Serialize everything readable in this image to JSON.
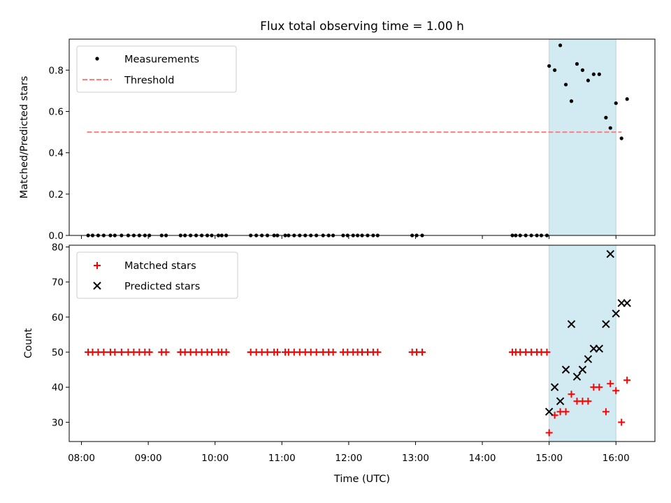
{
  "chart_data": [
    {
      "panel": "top",
      "type": "scatter",
      "title": "Flux total observing time = 1.00 h",
      "xlabel": "",
      "ylabel": "Matched/Predicted stars",
      "xlim": [
        "07:49",
        "16:35"
      ],
      "ylim": [
        0,
        0.95
      ],
      "yticks": [
        0.0,
        0.2,
        0.4,
        0.6,
        0.8
      ],
      "ytick_labels": [
        "0.0",
        "0.2",
        "0.4",
        "0.6",
        "0.8"
      ],
      "grid": false,
      "legend": "top-left",
      "shaded_span": {
        "x0": "15:00",
        "x1": "16:00",
        "color": "#add8e6"
      },
      "threshold": {
        "name": "Threshold",
        "value": 0.5,
        "x0": "08:05",
        "x1": "16:05",
        "color": "#ff7f7f"
      },
      "series": [
        {
          "name": "Measurements",
          "color": "#000000",
          "x": [
            "08:06",
            "08:10",
            "08:15",
            "08:20",
            "08:26",
            "08:30",
            "08:36",
            "08:42",
            "08:47",
            "08:52",
            "08:57",
            "09:01",
            "09:12",
            "09:16",
            "09:29",
            "09:33",
            "09:38",
            "09:43",
            "09:48",
            "09:53",
            "09:57",
            "10:03",
            "10:06",
            "10:10",
            "10:32",
            "10:37",
            "10:42",
            "10:47",
            "10:53",
            "10:56",
            "11:03",
            "11:06",
            "11:11",
            "11:16",
            "11:21",
            "11:26",
            "11:31",
            "11:37",
            "11:42",
            "11:46",
            "11:55",
            "11:59",
            "12:04",
            "12:08",
            "12:12",
            "12:17",
            "12:22",
            "12:26",
            "12:57",
            "13:01",
            "13:06",
            "14:27",
            "14:30",
            "14:34",
            "14:39",
            "14:44",
            "14:49",
            "14:53",
            "14:58"
          ],
          "y": [
            0,
            0,
            0,
            0,
            0,
            0,
            0,
            0,
            0,
            0,
            0,
            0,
            0,
            0,
            0,
            0,
            0,
            0,
            0,
            0,
            0,
            0,
            0,
            0,
            0,
            0,
            0,
            0,
            0,
            0,
            0,
            0,
            0,
            0,
            0,
            0,
            0,
            0,
            0,
            0,
            0,
            0,
            0,
            0,
            0,
            0,
            0,
            0,
            0,
            0,
            0,
            0,
            0,
            0,
            0,
            0,
            0,
            0,
            0
          ]
        },
        {
          "name": "Measurements",
          "color": "#000000",
          "x": [
            "15:00",
            "15:05",
            "15:10",
            "15:15",
            "15:20",
            "15:25",
            "15:30",
            "15:35",
            "15:40",
            "15:45",
            "15:51",
            "15:55",
            "16:00",
            "16:05",
            "16:10"
          ],
          "y": [
            0.82,
            0.8,
            0.92,
            0.73,
            0.65,
            0.83,
            0.8,
            0.75,
            0.78,
            0.78,
            0.57,
            0.52,
            0.64,
            0.47,
            0.66
          ]
        }
      ]
    },
    {
      "panel": "bottom",
      "type": "scatter",
      "title": "",
      "xlabel": "Time (UTC)",
      "ylabel": "Count",
      "xlim": [
        "07:49",
        "16:35"
      ],
      "ylim": [
        24.5,
        80.5
      ],
      "yticks": [
        30,
        40,
        50,
        60,
        70,
        80
      ],
      "ytick_labels": [
        "30",
        "40",
        "50",
        "60",
        "70",
        "80"
      ],
      "xticks": [
        "08:00",
        "09:00",
        "10:00",
        "11:00",
        "12:00",
        "13:00",
        "14:00",
        "15:00",
        "16:00"
      ],
      "xtick_labels": [
        "08:00",
        "09:00",
        "10:00",
        "11:00",
        "12:00",
        "13:00",
        "14:00",
        "15:00",
        "16:00"
      ],
      "grid": false,
      "legend": "top-left",
      "shaded_span": {
        "x0": "15:00",
        "x1": "16:00",
        "color": "#add8e6"
      },
      "series": [
        {
          "name": "Matched stars",
          "marker": "plus",
          "color": "#ff0000",
          "x": [
            "08:06",
            "08:10",
            "08:15",
            "08:20",
            "08:26",
            "08:30",
            "08:36",
            "08:42",
            "08:47",
            "08:52",
            "08:57",
            "09:01",
            "09:12",
            "09:16",
            "09:29",
            "09:33",
            "09:38",
            "09:43",
            "09:48",
            "09:53",
            "09:57",
            "10:03",
            "10:06",
            "10:10",
            "10:32",
            "10:37",
            "10:42",
            "10:47",
            "10:53",
            "10:56",
            "11:03",
            "11:06",
            "11:11",
            "11:16",
            "11:21",
            "11:26",
            "11:31",
            "11:37",
            "11:42",
            "11:46",
            "11:55",
            "11:59",
            "12:04",
            "12:08",
            "12:12",
            "12:17",
            "12:22",
            "12:26",
            "12:57",
            "13:01",
            "13:06",
            "14:27",
            "14:30",
            "14:34",
            "14:39",
            "14:44",
            "14:49",
            "14:53",
            "14:58",
            "15:00",
            "15:05",
            "15:10",
            "15:15",
            "15:20",
            "15:25",
            "15:30",
            "15:35",
            "15:40",
            "15:45",
            "15:51",
            "15:55",
            "16:00",
            "16:05",
            "16:10"
          ],
          "y": [
            50,
            50,
            50,
            50,
            50,
            50,
            50,
            50,
            50,
            50,
            50,
            50,
            50,
            50,
            50,
            50,
            50,
            50,
            50,
            50,
            50,
            50,
            50,
            50,
            50,
            50,
            50,
            50,
            50,
            50,
            50,
            50,
            50,
            50,
            50,
            50,
            50,
            50,
            50,
            50,
            50,
            50,
            50,
            50,
            50,
            50,
            50,
            50,
            50,
            50,
            50,
            50,
            50,
            50,
            50,
            50,
            50,
            50,
            50,
            27,
            32,
            33,
            33,
            38,
            36,
            36,
            36,
            40,
            40,
            33,
            41,
            39,
            30,
            42
          ]
        },
        {
          "name": "Predicted stars",
          "marker": "x",
          "color": "#000000",
          "x": [
            "15:00",
            "15:05",
            "15:10",
            "15:15",
            "15:20",
            "15:25",
            "15:30",
            "15:35",
            "15:40",
            "15:45",
            "15:51",
            "15:55",
            "16:00",
            "16:05",
            "16:10"
          ],
          "y": [
            33,
            40,
            36,
            45,
            58,
            43,
            45,
            48,
            51,
            51,
            58,
            78,
            61,
            64,
            64
          ]
        }
      ]
    }
  ]
}
